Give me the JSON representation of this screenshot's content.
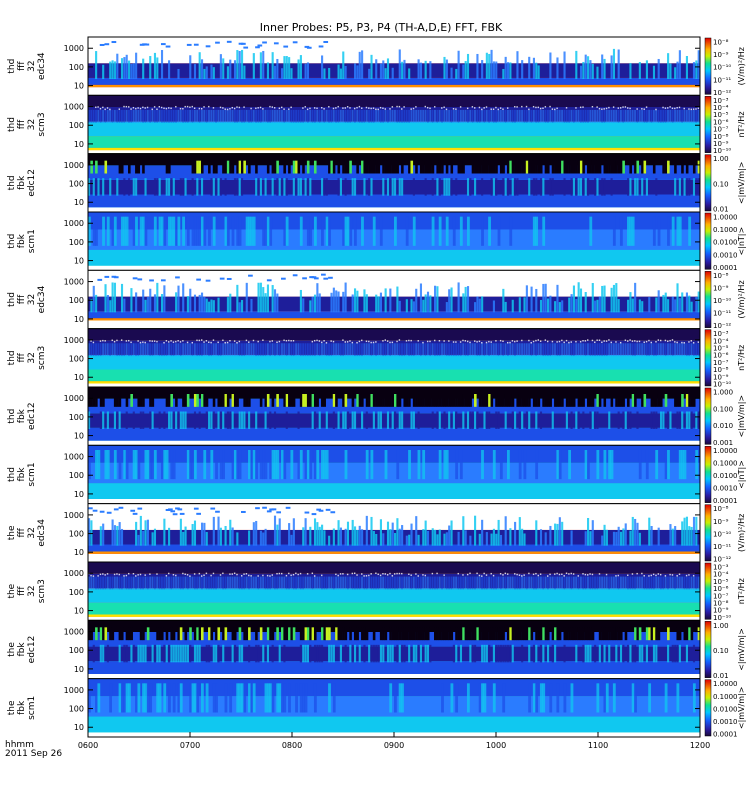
{
  "chart_data": {
    "type": "heatmap",
    "title": "Inner Probes: P5, P3, P4 (TH-A,D,E) FFT, FBK",
    "x_axis": {
      "ticks": [
        "0600",
        "0700",
        "0800",
        "0900",
        "1000",
        "1100",
        "1200"
      ],
      "ticks_hours": [
        6,
        7,
        8,
        9,
        10,
        11,
        12
      ],
      "range_hours": [
        6,
        12
      ],
      "label_line1": "hhmm",
      "label_line2": "2011 Sep 26"
    },
    "panels": [
      {
        "probe": "thd",
        "l1": "thd",
        "l2": "fff",
        "l3": "32",
        "l4": "edc34",
        "y_ticks": [
          "1000",
          "100",
          "10"
        ],
        "y_values": [
          1000,
          100,
          10
        ],
        "cb_label": "(V/m)²/Hz",
        "cb_ticks": [
          "10⁻⁸",
          "10⁻⁹",
          "10⁻¹⁰",
          "10⁻¹¹",
          "10⁻¹²"
        ],
        "kind": "eff"
      },
      {
        "probe": "thd",
        "l1": "thd",
        "l2": "fff",
        "l3": "32",
        "l4": "scm3",
        "y_ticks": [
          "1000",
          "100",
          "10"
        ],
        "y_values": [
          1000,
          100,
          10
        ],
        "cb_label": "nT²/Hz",
        "cb_ticks": [
          "10⁻³",
          "10⁻⁴",
          "10⁻⁵",
          "10⁻⁶",
          "10⁻⁷",
          "10⁻⁸",
          "10⁻⁹",
          "10⁻¹⁰"
        ],
        "kind": "sff"
      },
      {
        "probe": "thd",
        "l1": "thd",
        "l2": "fbk",
        "l3": "",
        "l4": "edc12",
        "y_ticks": [
          "1000",
          "100",
          "10"
        ],
        "y_values": [
          1000,
          100,
          10
        ],
        "cb_label": "<|mV/m|>",
        "cb_ticks": [
          "1.00",
          "0.10",
          "0.01"
        ],
        "kind": "efb"
      },
      {
        "probe": "thd",
        "l1": "thd",
        "l2": "fbk",
        "l3": "",
        "l4": "scm1",
        "y_ticks": [
          "1000",
          "100",
          "10"
        ],
        "y_values": [
          1000,
          100,
          10
        ],
        "cb_label": "<|nT|>",
        "cb_ticks": [
          "1.0000",
          "0.1000",
          "0.0100",
          "0.0010",
          "0.0001"
        ],
        "kind": "sfb"
      },
      {
        "probe": "thd",
        "l1": "thd",
        "l2": "fff",
        "l3": "32",
        "l4": "edc34",
        "y_ticks": [
          "1000",
          "100",
          "10"
        ],
        "y_values": [
          1000,
          100,
          10
        ],
        "cb_label": "(V/m)²/Hz",
        "cb_ticks": [
          "10⁻⁸",
          "10⁻⁹",
          "10⁻¹⁰",
          "10⁻¹¹",
          "10⁻¹²"
        ],
        "kind": "eff"
      },
      {
        "probe": "thd",
        "l1": "thd",
        "l2": "fff",
        "l3": "32",
        "l4": "scm3",
        "y_ticks": [
          "1000",
          "100",
          "10"
        ],
        "y_values": [
          1000,
          100,
          10
        ],
        "cb_label": "nT²/Hz",
        "cb_ticks": [
          "10⁻³",
          "10⁻⁴",
          "10⁻⁵",
          "10⁻⁶",
          "10⁻⁷",
          "10⁻⁸",
          "10⁻⁹",
          "10⁻¹⁰"
        ],
        "kind": "sff"
      },
      {
        "probe": "thd",
        "l1": "thd",
        "l2": "fbk",
        "l3": "",
        "l4": "edc12",
        "y_ticks": [
          "1000",
          "100",
          "10"
        ],
        "y_values": [
          1000,
          100,
          10
        ],
        "cb_label": "<|mV/m|>",
        "cb_ticks": [
          "1.000",
          "0.100",
          "0.010",
          "0.001"
        ],
        "kind": "efb"
      },
      {
        "probe": "thd",
        "l1": "thd",
        "l2": "fbk",
        "l3": "",
        "l4": "scm1",
        "y_ticks": [
          "1000",
          "100",
          "10"
        ],
        "y_values": [
          1000,
          100,
          10
        ],
        "cb_label": "<|nT|>",
        "cb_ticks": [
          "1.0000",
          "0.1000",
          "0.0100",
          "0.0010",
          "0.0001"
        ],
        "kind": "sfb"
      },
      {
        "probe": "the",
        "l1": "the",
        "l2": "fff",
        "l3": "32",
        "l4": "edc34",
        "y_ticks": [
          "1000",
          "100",
          "10"
        ],
        "y_values": [
          1000,
          100,
          10
        ],
        "cb_label": "(V/m)²/Hz",
        "cb_ticks": [
          "10⁻⁸",
          "10⁻⁹",
          "10⁻¹⁰",
          "10⁻¹¹",
          "10⁻¹²"
        ],
        "kind": "eff"
      },
      {
        "probe": "the",
        "l1": "the",
        "l2": "fff",
        "l3": "32",
        "l4": "scm3",
        "y_ticks": [
          "1000",
          "100",
          "10"
        ],
        "y_values": [
          1000,
          100,
          10
        ],
        "cb_label": "nT²/Hz",
        "cb_ticks": [
          "10⁻³",
          "10⁻⁴",
          "10⁻⁵",
          "10⁻⁶",
          "10⁻⁷",
          "10⁻⁸",
          "10⁻⁹",
          "10⁻¹⁰"
        ],
        "kind": "sff"
      },
      {
        "probe": "the",
        "l1": "the",
        "l2": "fbk",
        "l3": "",
        "l4": "edc12",
        "y_ticks": [
          "1000",
          "100",
          "10"
        ],
        "y_values": [
          1000,
          100,
          10
        ],
        "cb_label": "<|mV/m|>",
        "cb_ticks": [
          "1.00",
          "0.10",
          "0.01"
        ],
        "kind": "efb"
      },
      {
        "probe": "the",
        "l1": "the",
        "l2": "fbk",
        "l3": "",
        "l4": "scm1",
        "y_ticks": [
          "1000",
          "100",
          "10"
        ],
        "y_values": [
          1000,
          100,
          10
        ],
        "cb_label": "<|mV/m|>",
        "cb_ticks": [
          "1.0000",
          "0.1000",
          "0.0100",
          "0.0010",
          "0.0001"
        ],
        "kind": "sfb"
      }
    ]
  }
}
